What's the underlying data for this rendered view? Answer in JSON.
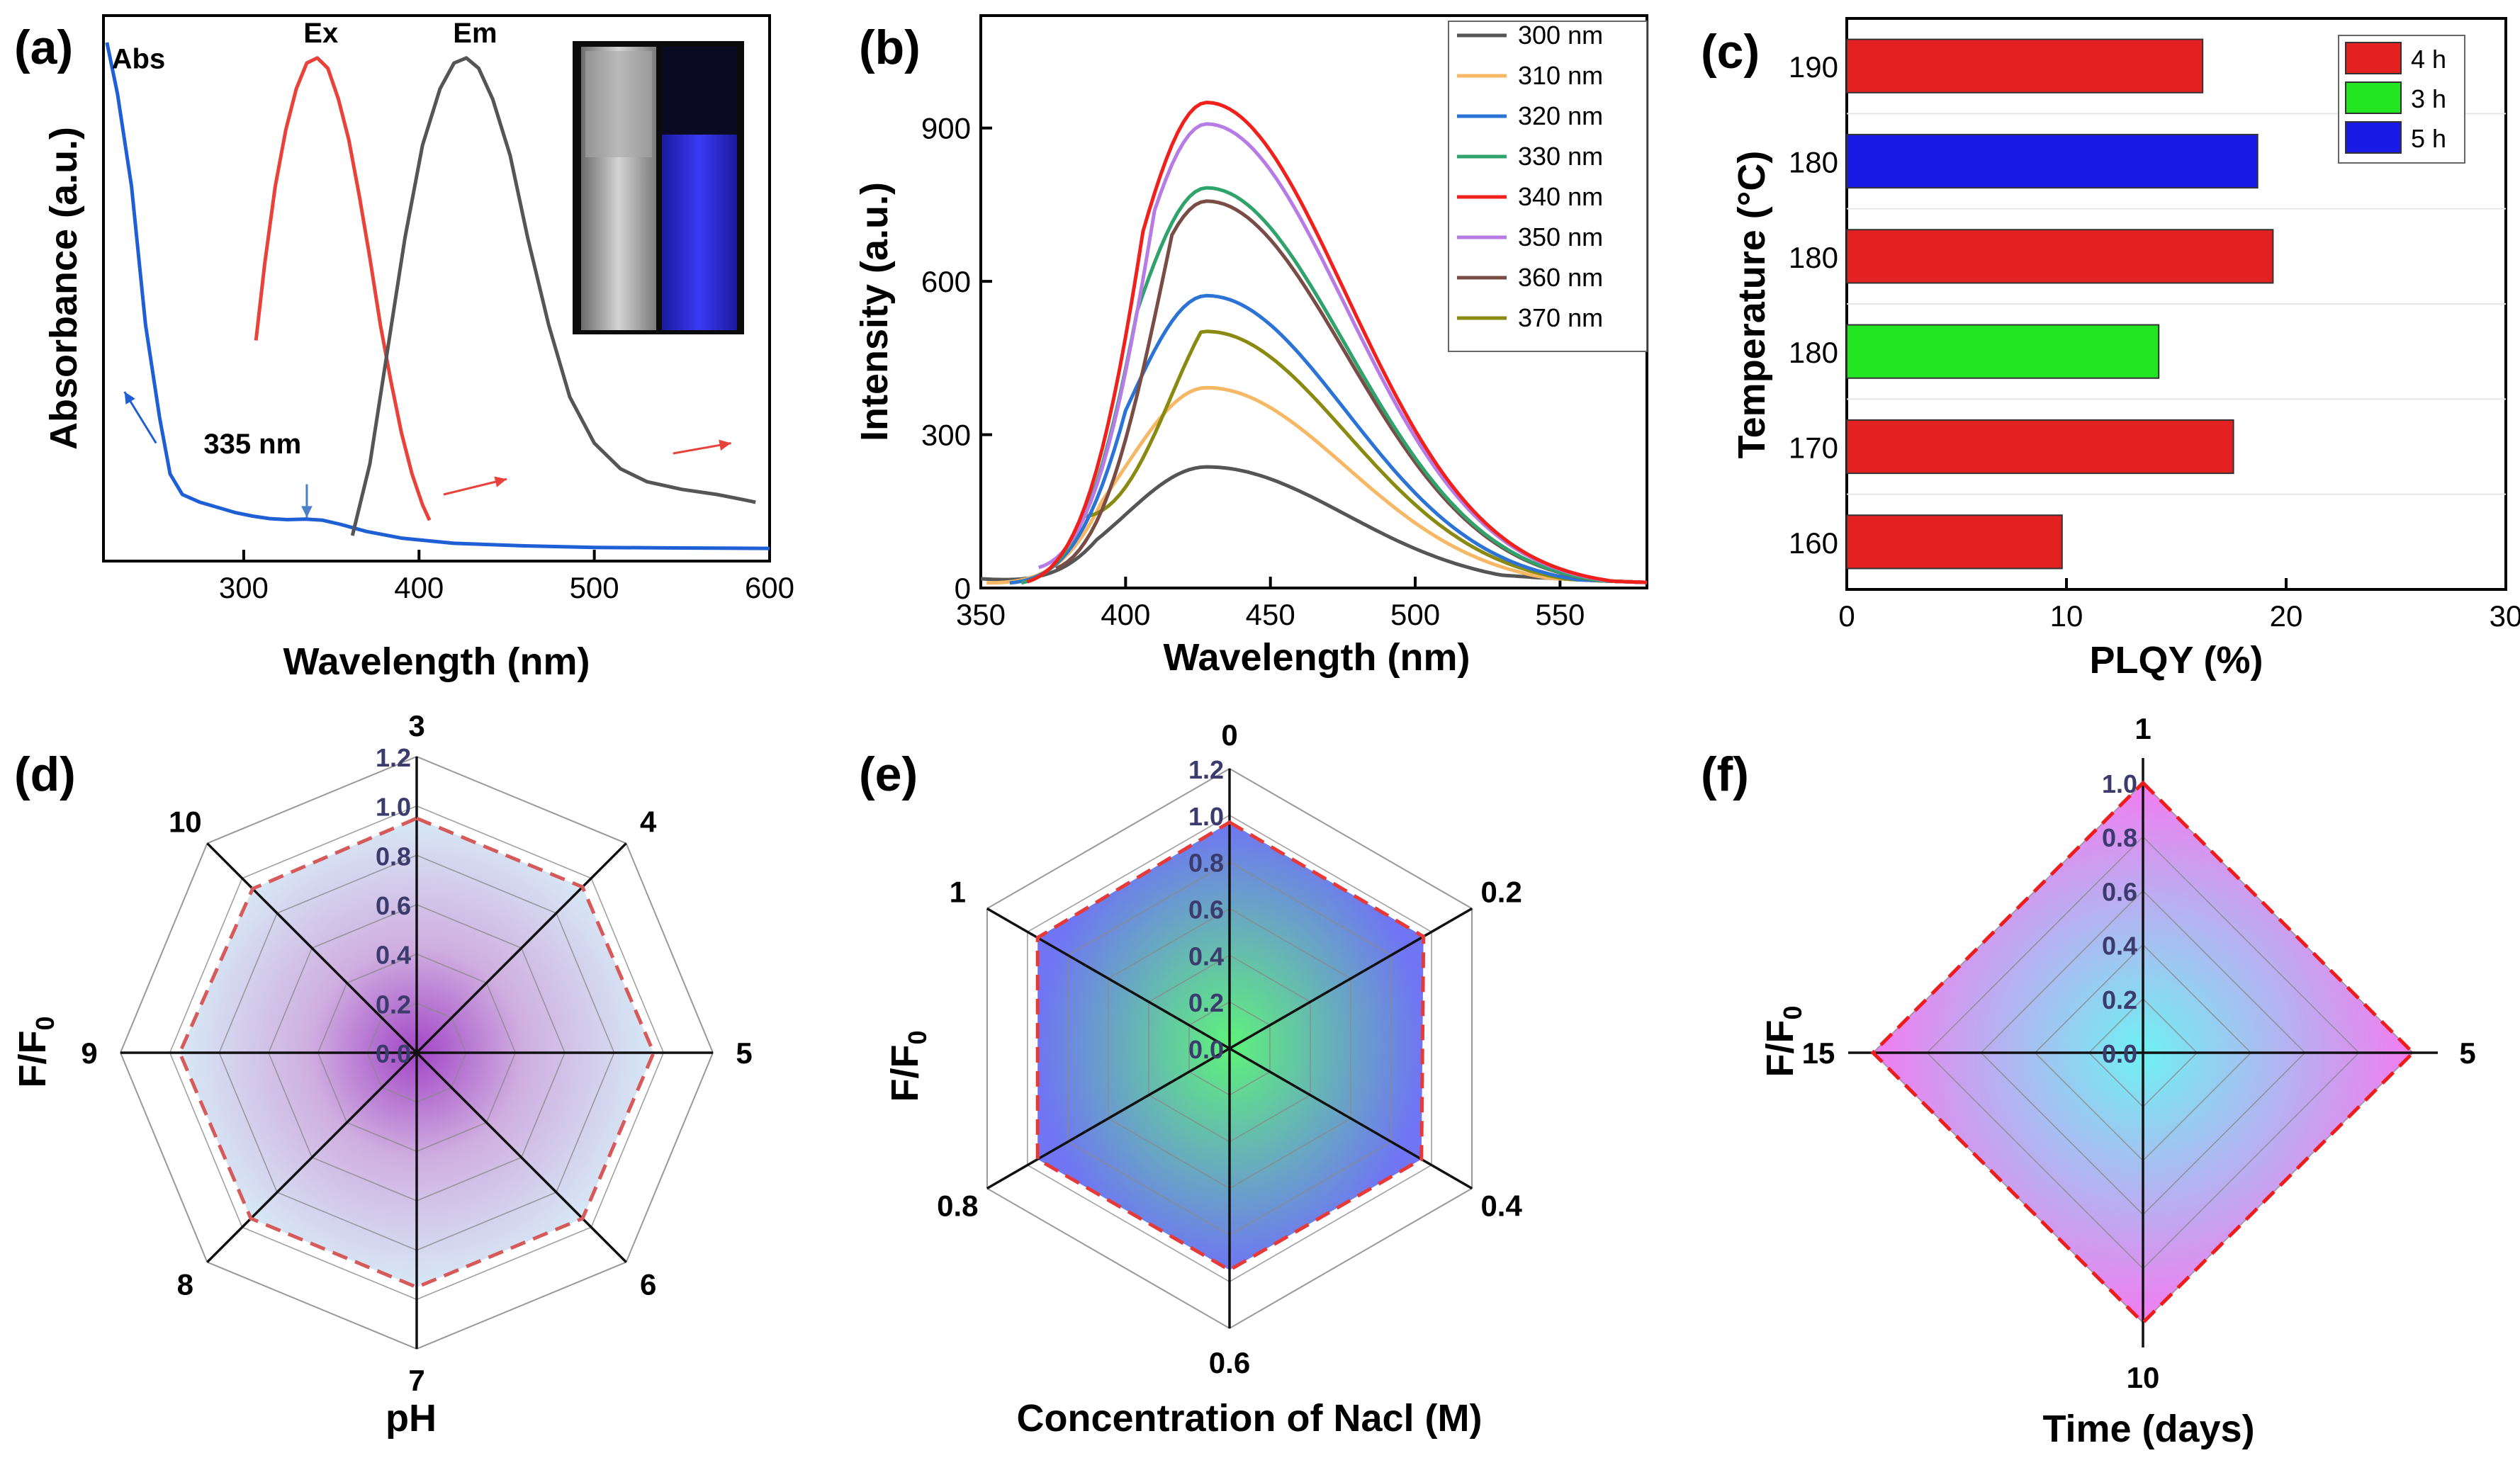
{
  "chart_data": [
    {
      "id": "a",
      "panel_label": "(a)",
      "type": "line",
      "xlabel": "Wavelength (nm)",
      "ylabel": "Absorbance (a.u.)",
      "xlim": [
        220,
        600
      ],
      "ylim": [
        0,
        1
      ],
      "xticks": [
        300,
        400,
        500,
        600
      ],
      "series": [
        {
          "name": "Abs",
          "color": "#1f5fd6",
          "x": [
            222,
            228,
            236,
            244,
            252,
            258,
            265,
            275,
            285,
            295,
            305,
            315,
            325,
            335,
            345,
            355,
            370,
            390,
            420,
            460,
            500,
            540,
            600
          ],
          "y": [
            1.0,
            0.9,
            0.72,
            0.45,
            0.27,
            0.16,
            0.12,
            0.105,
            0.095,
            0.085,
            0.078,
            0.073,
            0.071,
            0.072,
            0.07,
            0.062,
            0.048,
            0.035,
            0.025,
            0.02,
            0.017,
            0.016,
            0.015
          ]
        },
        {
          "name": "Ex",
          "color": "#e8423a",
          "x": [
            307,
            312,
            318,
            324,
            330,
            336,
            342,
            348,
            354,
            360,
            366,
            372,
            378,
            384,
            390,
            396,
            402,
            406
          ],
          "y": [
            0.42,
            0.57,
            0.72,
            0.83,
            0.91,
            0.96,
            0.97,
            0.95,
            0.89,
            0.81,
            0.7,
            0.58,
            0.45,
            0.34,
            0.24,
            0.16,
            0.1,
            0.07
          ]
        },
        {
          "name": "Em",
          "color": "#555555",
          "x": [
            362,
            372,
            382,
            392,
            402,
            412,
            420,
            427,
            434,
            442,
            452,
            462,
            474,
            486,
            500,
            515,
            530,
            550,
            570,
            585,
            592
          ],
          "y": [
            0.04,
            0.18,
            0.4,
            0.62,
            0.8,
            0.91,
            0.96,
            0.97,
            0.95,
            0.89,
            0.78,
            0.62,
            0.45,
            0.31,
            0.22,
            0.17,
            0.145,
            0.13,
            0.12,
            0.11,
            0.105
          ]
        }
      ],
      "annotations": [
        {
          "text": "Abs",
          "x": 240,
          "y": 0.95
        },
        {
          "text": "Ex",
          "x": 344,
          "y": 1.0
        },
        {
          "text": "Em",
          "x": 432,
          "y": 1.0
        },
        {
          "text": "335 nm",
          "x": 305,
          "y": 0.2
        }
      ],
      "arrows": [
        {
          "name": "abs-arrow",
          "x1": 250,
          "y1": 0.22,
          "x2": 232,
          "y2": 0.32,
          "color": "#1f5fd6"
        },
        {
          "name": "peak-arrow",
          "x1": 336,
          "y1": 0.14,
          "x2": 336,
          "y2": 0.075,
          "color": "#4a80c6"
        },
        {
          "name": "ex-arrow",
          "x1": 414,
          "y1": 0.12,
          "x2": 450,
          "y2": 0.15,
          "color": "#e8423a"
        },
        {
          "name": "em-arrow",
          "x1": 545,
          "y1": 0.2,
          "x2": 578,
          "y2": 0.22,
          "color": "#e8423a"
        }
      ]
    },
    {
      "id": "b",
      "panel_label": "(b)",
      "type": "line",
      "xlabel": "Wavelength (nm)",
      "ylabel": "Intensity (a.u.)",
      "xlim": [
        350,
        580
      ],
      "ylim": [
        0,
        1120
      ],
      "xticks": [
        350,
        400,
        450,
        500,
        550
      ],
      "yticks": [
        0,
        300,
        600,
        900
      ],
      "legend_position": "top-right",
      "series": [
        {
          "name": "300 nm",
          "color": "#555555",
          "peak": 237,
          "start": 350,
          "startVal": 18
        },
        {
          "name": "310 nm",
          "color": "#f7b865",
          "peak": 392,
          "start": 352,
          "startVal": 10
        },
        {
          "name": "320 nm",
          "color": "#2b74d6",
          "peak": 572,
          "start": 360,
          "startVal": 10
        },
        {
          "name": "330 nm",
          "color": "#2fa36b",
          "peak": 783,
          "start": 364,
          "startVal": 10
        },
        {
          "name": "340 nm",
          "color": "#f0211d",
          "peak": 950,
          "start": 366,
          "startVal": 12
        },
        {
          "name": "350 nm",
          "color": "#b77be6",
          "peak": 908,
          "start": 370,
          "startVal": 40
        },
        {
          "name": "360 nm",
          "color": "#7a4c46",
          "peak": 757,
          "start": 376,
          "startVal": 38
        },
        {
          "name": "370 nm",
          "color": "#8a8a10",
          "peak": 502,
          "start": 386,
          "startVal": 140
        }
      ]
    },
    {
      "id": "c",
      "panel_label": "(c)",
      "type": "bar",
      "orientation": "horizontal",
      "xlabel": "PLQY (%)",
      "ylabel": "Temperature (°C)",
      "xlim": [
        0,
        30
      ],
      "xticks": [
        0,
        10,
        20,
        30
      ],
      "categories": [
        "160",
        "170",
        "180",
        "180",
        "180",
        "190"
      ],
      "values": [
        9.8,
        17.6,
        14.2,
        19.4,
        18.7,
        16.2
      ],
      "bar_colors": [
        "#e32121",
        "#e32121",
        "#22e622",
        "#e32121",
        "#1a1ae6",
        "#e32121"
      ],
      "legend_position": "top-right",
      "legend": [
        {
          "label": "4 h",
          "color": "#e32121"
        },
        {
          "label": "3 h",
          "color": "#22e622"
        },
        {
          "label": "5 h",
          "color": "#1a1ae6"
        }
      ]
    },
    {
      "id": "d",
      "panel_label": "(d)",
      "type": "radar",
      "xlabel": "pH",
      "ylabel": "F/F0",
      "ylabel_main": "F/F",
      "ylabel_sub": "0",
      "rmax": 1.2,
      "rlabels": [
        "0.0",
        "0.2",
        "0.4",
        "0.6",
        "0.8",
        "1.0",
        "1.2"
      ],
      "categories": [
        "3",
        "4",
        "5",
        "6",
        "7",
        "8",
        "9",
        "10"
      ],
      "values": [
        0.95,
        0.95,
        0.96,
        0.95,
        0.95,
        0.95,
        0.96,
        0.94
      ],
      "fill_center": "#a346c7",
      "fill_edge": "#d7e9f6",
      "line_color": "#d65a5a"
    },
    {
      "id": "e",
      "panel_label": "(e)",
      "type": "radar",
      "xlabel": "Concentration of Nacl (M)",
      "ylabel": "F/F0",
      "ylabel_main": "F/F",
      "ylabel_sub": "0",
      "rmax": 1.2,
      "rlabels": [
        "0.0",
        "0.2",
        "0.4",
        "0.6",
        "0.8",
        "1.0",
        "1.2"
      ],
      "categories": [
        "0",
        "0.2",
        "0.4",
        "0.6",
        "0.8",
        "1"
      ],
      "values": [
        0.97,
        0.96,
        0.95,
        0.95,
        0.95,
        0.95
      ],
      "fill_center": "#5ef27a",
      "fill_edge": "#6f75f3",
      "line_color": "#e63a3a"
    },
    {
      "id": "f",
      "panel_label": "(f)",
      "type": "radar",
      "xlabel": "Time (days)",
      "ylabel": "F/F0",
      "ylabel_main": "F/F",
      "ylabel_sub": "0",
      "rmax": 1.05,
      "rlabels": [
        "0.0",
        "0.2",
        "0.4",
        "0.6",
        "0.8",
        "1.0"
      ],
      "categories": [
        "1",
        "5",
        "10",
        "15"
      ],
      "values": [
        1.0,
        1.0,
        1.0,
        1.0
      ],
      "fill_center": "#6ff0f2",
      "fill_edge": "#f27cf0",
      "line_color": "#ee1d1d"
    }
  ]
}
